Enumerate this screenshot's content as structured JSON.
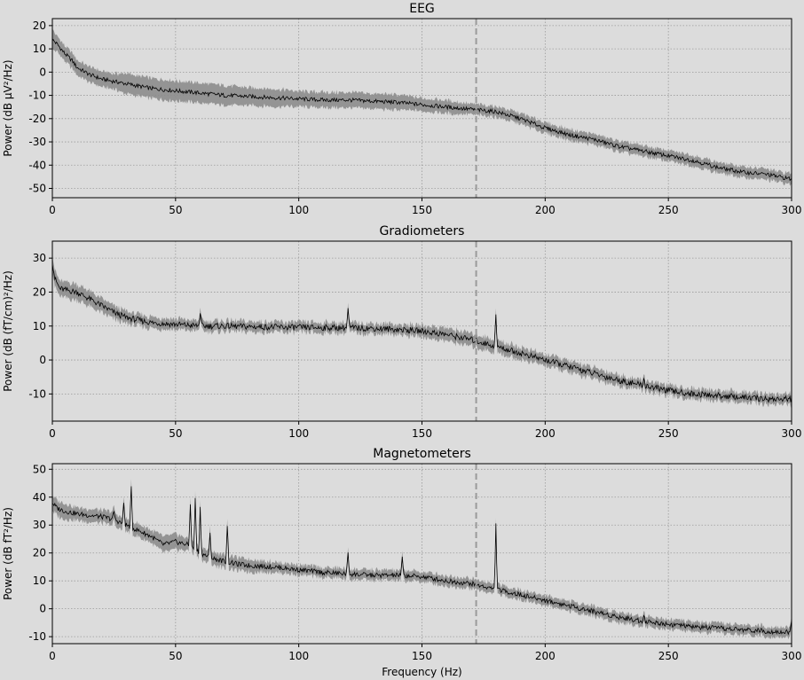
{
  "chart_data": [
    {
      "type": "line",
      "title": "EEG",
      "xlabel": "",
      "ylabel": "Power (dB µV²/Hz)",
      "xlim": [
        0,
        300
      ],
      "ylim": [
        -54,
        23
      ],
      "xticks": [
        0,
        50,
        100,
        150,
        200,
        250,
        300
      ],
      "yticks": [
        20,
        10,
        0,
        -10,
        -20,
        -30,
        -40,
        -50
      ],
      "grid": true,
      "vline_x": 172,
      "series": [
        {
          "x": [
            0,
            2,
            5,
            8,
            10,
            15,
            20,
            25,
            30,
            40,
            50,
            60,
            70,
            80,
            90,
            100,
            110,
            120,
            130,
            140,
            150,
            160,
            170,
            180,
            190,
            200,
            210,
            220,
            230,
            240,
            250,
            260,
            270,
            280,
            290,
            300
          ],
          "values": [
            14,
            12,
            8,
            5,
            2,
            -1,
            -3,
            -4,
            -5,
            -7,
            -8,
            -9,
            -10,
            -10.5,
            -11,
            -11.5,
            -12,
            -12,
            -12.5,
            -13,
            -14,
            -15,
            -16,
            -17,
            -20,
            -24,
            -27,
            -29,
            -32,
            -34,
            -36,
            -38,
            -41,
            -43,
            -44,
            -46
          ],
          "band": [
            4,
            3,
            3,
            3,
            3,
            3,
            3,
            3,
            4,
            4,
            4,
            4,
            4,
            3.5,
            3.5,
            3,
            3,
            3,
            3,
            3,
            2.5,
            2.5,
            2,
            2,
            2,
            2,
            2,
            2,
            2,
            2,
            2,
            2,
            2,
            2,
            2,
            2
          ]
        }
      ]
    },
    {
      "type": "line",
      "title": "Gradiometers",
      "xlabel": "",
      "ylabel": "Power (dB (fT/cm)²/Hz)",
      "xlim": [
        0,
        300
      ],
      "ylim": [
        -18,
        35
      ],
      "xticks": [
        0,
        50,
        100,
        150,
        200,
        250,
        300
      ],
      "yticks": [
        30,
        20,
        10,
        0,
        -10
      ],
      "grid": true,
      "vline_x": 172,
      "series": [
        {
          "x": [
            0,
            1,
            3,
            6,
            10,
            15,
            20,
            25,
            30,
            40,
            50,
            60,
            70,
            80,
            90,
            100,
            110,
            120,
            130,
            140,
            150,
            160,
            170,
            180,
            190,
            200,
            210,
            220,
            230,
            240,
            250,
            260,
            270,
            280,
            290,
            300
          ],
          "values": [
            29,
            24,
            21,
            20.5,
            20,
            18,
            16,
            14,
            12.5,
            11,
            10.5,
            10,
            10,
            9.8,
            9.7,
            9.6,
            9.5,
            9.5,
            9.3,
            9,
            8.5,
            7.5,
            6,
            4,
            2,
            0,
            -2,
            -4,
            -6,
            -7.5,
            -9,
            -10,
            -10.5,
            -11,
            -11.5,
            -11.5
          ],
          "band": [
            2,
            2,
            2,
            2,
            2,
            2,
            1.8,
            1.6,
            1.5,
            1.4,
            1.3,
            1.2,
            1.2,
            1.2,
            1.2,
            1.2,
            1.2,
            1.2,
            1.2,
            1.2,
            1.4,
            1.6,
            1.6,
            1.6,
            1.5,
            1.4,
            1.4,
            1.4,
            1.3,
            1.2,
            1.2,
            1.2,
            1.2,
            1.2,
            1.2,
            1.2
          ],
          "peaks": [
            [
              60,
              14
            ],
            [
              120,
              15
            ],
            [
              180,
              13
            ],
            [
              240,
              -5.5
            ],
            [
              300,
              -14
            ]
          ]
        }
      ]
    },
    {
      "type": "line",
      "title": "Magnetometers",
      "xlabel": "Frequency (Hz)",
      "ylabel": "Power (dB fT²/Hz)",
      "xlim": [
        0,
        300
      ],
      "ylim": [
        -12.5,
        52
      ],
      "xticks": [
        0,
        50,
        100,
        150,
        200,
        250,
        300
      ],
      "yticks": [
        50,
        40,
        30,
        20,
        10,
        0,
        -10
      ],
      "grid": true,
      "vline_x": 172,
      "series": [
        {
          "x": [
            0,
            2,
            5,
            10,
            15,
            20,
            25,
            30,
            35,
            40,
            45,
            50,
            55,
            60,
            65,
            70,
            75,
            80,
            90,
            100,
            110,
            120,
            130,
            140,
            150,
            160,
            170,
            180,
            190,
            200,
            210,
            220,
            230,
            240,
            250,
            260,
            270,
            280,
            290,
            300
          ],
          "values": [
            38,
            36,
            35,
            34,
            33.5,
            33,
            32,
            30,
            28,
            26,
            23,
            24,
            23,
            20,
            18,
            17,
            16,
            15.5,
            15,
            14,
            13,
            12.5,
            12,
            12,
            11.5,
            10,
            9,
            7,
            5,
            3,
            1,
            -1,
            -3,
            -4.5,
            -5.5,
            -6.5,
            -7,
            -7.5,
            -8,
            -8.5
          ],
          "band": [
            2.5,
            2.5,
            2.5,
            2,
            2,
            2,
            2,
            2,
            2,
            2,
            2.5,
            2.5,
            2,
            2,
            2,
            2,
            2,
            2,
            1.5,
            1.5,
            1.5,
            1.5,
            1.5,
            1.5,
            1.5,
            1.5,
            1.5,
            1.5,
            1.5,
            1.5,
            1.5,
            1.5,
            1.5,
            1.5,
            1.5,
            1.5,
            1.5,
            1.5,
            1.5,
            1.5
          ],
          "peaks": [
            [
              25,
              35
            ],
            [
              29,
              38
            ],
            [
              32,
              43
            ],
            [
              56,
              38
            ],
            [
              58,
              39
            ],
            [
              60,
              36
            ],
            [
              64,
              27
            ],
            [
              71,
              30
            ],
            [
              120,
              20
            ],
            [
              142,
              18
            ],
            [
              180,
              30
            ],
            [
              240,
              -2
            ],
            [
              300,
              -4
            ]
          ]
        }
      ]
    }
  ]
}
